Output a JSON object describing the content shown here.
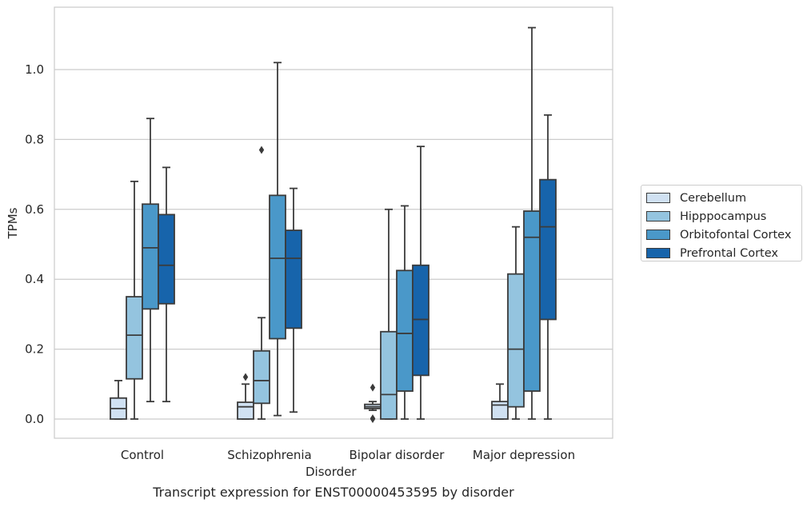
{
  "chart_data": {
    "type": "box",
    "title": "",
    "xlabel": "Disorder",
    "ylabel": "TPMs",
    "caption": "Transcript expression for ENST00000453595 by disorder",
    "categories": [
      "Control",
      "Schizophrenia",
      "Bipolar disorder",
      "Major depression"
    ],
    "ylim": [
      -0.055,
      1.18
    ],
    "yticks": [
      "0.0",
      "0.2",
      "0.4",
      "0.6",
      "0.8",
      "1.0"
    ],
    "grid": "horizontal",
    "legend_position": "right",
    "series": [
      {
        "name": "Cerebellum",
        "color": "#d0e1f2",
        "boxes": [
          {
            "whisker_low": 0.0,
            "q1": 0.0,
            "median": 0.03,
            "q3": 0.06,
            "whisker_high": 0.11,
            "outliers": []
          },
          {
            "whisker_low": 0.0,
            "q1": 0.0,
            "median": 0.035,
            "q3": 0.048,
            "whisker_high": 0.1,
            "outliers": [
              0.12
            ]
          },
          {
            "whisker_low": 0.025,
            "q1": 0.03,
            "median": 0.035,
            "q3": 0.042,
            "whisker_high": 0.05,
            "outliers": [
              0.0,
              0.002,
              0.09
            ]
          },
          {
            "whisker_low": 0.0,
            "q1": 0.0,
            "median": 0.04,
            "q3": 0.05,
            "whisker_high": 0.1,
            "outliers": []
          }
        ]
      },
      {
        "name": "Hipppocampus",
        "color": "#94c4df",
        "boxes": [
          {
            "whisker_low": 0.0,
            "q1": 0.115,
            "median": 0.24,
            "q3": 0.35,
            "whisker_high": 0.68,
            "outliers": []
          },
          {
            "whisker_low": 0.0,
            "q1": 0.045,
            "median": 0.11,
            "q3": 0.195,
            "whisker_high": 0.29,
            "outliers": [
              0.77
            ]
          },
          {
            "whisker_low": 0.0,
            "q1": 0.0,
            "median": 0.07,
            "q3": 0.25,
            "whisker_high": 0.6,
            "outliers": []
          },
          {
            "whisker_low": 0.0,
            "q1": 0.035,
            "median": 0.2,
            "q3": 0.415,
            "whisker_high": 0.55,
            "outliers": []
          }
        ]
      },
      {
        "name": "Orbitofontal Cortex",
        "color": "#4a98c9",
        "boxes": [
          {
            "whisker_low": 0.05,
            "q1": 0.315,
            "median": 0.49,
            "q3": 0.615,
            "whisker_high": 0.86,
            "outliers": []
          },
          {
            "whisker_low": 0.01,
            "q1": 0.23,
            "median": 0.46,
            "q3": 0.64,
            "whisker_high": 1.02,
            "outliers": []
          },
          {
            "whisker_low": 0.0,
            "q1": 0.08,
            "median": 0.245,
            "q3": 0.425,
            "whisker_high": 0.61,
            "outliers": []
          },
          {
            "whisker_low": 0.0,
            "q1": 0.08,
            "median": 0.52,
            "q3": 0.595,
            "whisker_high": 1.12,
            "outliers": []
          }
        ]
      },
      {
        "name": "Prefrontal Cortex",
        "color": "#1764ab",
        "boxes": [
          {
            "whisker_low": 0.05,
            "q1": 0.33,
            "median": 0.44,
            "q3": 0.585,
            "whisker_high": 0.72,
            "outliers": []
          },
          {
            "whisker_low": 0.02,
            "q1": 0.26,
            "median": 0.46,
            "q3": 0.54,
            "whisker_high": 0.66,
            "outliers": []
          },
          {
            "whisker_low": 0.0,
            "q1": 0.125,
            "median": 0.285,
            "q3": 0.44,
            "whisker_high": 0.78,
            "outliers": []
          },
          {
            "whisker_low": 0.0,
            "q1": 0.285,
            "median": 0.55,
            "q3": 0.685,
            "whisker_high": 0.87,
            "outliers": []
          }
        ]
      }
    ]
  }
}
